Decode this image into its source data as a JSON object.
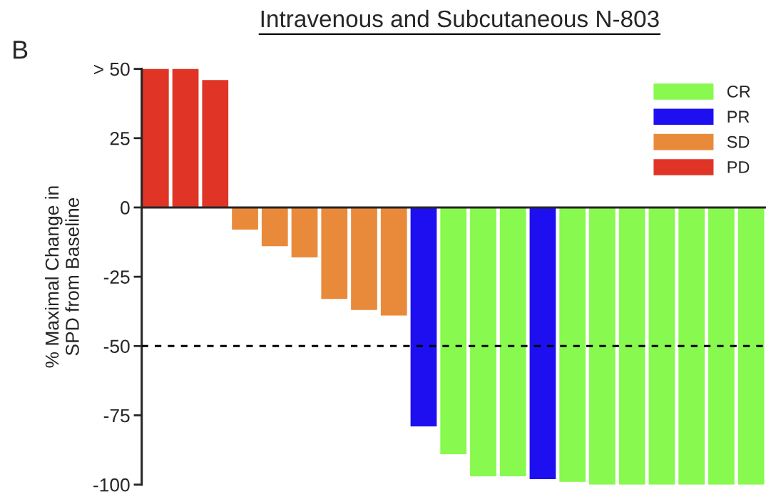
{
  "chart_data": {
    "type": "bar",
    "title": "Intravenous and Subcutaneous N-803",
    "ylabel": "% Maximal Change in\nSPD from Baseline",
    "annotations": [
      "B"
    ],
    "categories": [
      null,
      null,
      null,
      null,
      null,
      null,
      null,
      null,
      null,
      null,
      null,
      null,
      null,
      null,
      null,
      null,
      null,
      null,
      null,
      null,
      null
    ],
    "series": [
      {
        "name": "CR",
        "color": "#88f94e",
        "values": [
          null,
          null,
          null,
          null,
          null,
          null,
          null,
          null,
          null,
          null,
          -89,
          -97,
          -97,
          null,
          -99,
          -100,
          -100,
          -100,
          -100,
          -100,
          -100
        ]
      },
      {
        "name": "PR",
        "color": "#1d0ff0",
        "values": [
          null,
          null,
          null,
          null,
          null,
          null,
          null,
          null,
          null,
          -79,
          null,
          null,
          null,
          -98,
          null,
          null,
          null,
          null,
          null,
          null,
          null
        ]
      },
      {
        "name": "SD",
        "color": "#e98a3a",
        "values": [
          null,
          null,
          null,
          -8,
          -14,
          -18,
          -33,
          -37,
          -39,
          null,
          null,
          null,
          null,
          null,
          null,
          null,
          null,
          null,
          null,
          null,
          null
        ]
      },
      {
        "name": "PD",
        "color": "#e03426",
        "values": [
          50,
          50,
          46,
          null,
          null,
          null,
          null,
          null,
          null,
          null,
          null,
          null,
          null,
          null,
          null,
          null,
          null,
          null,
          null,
          null,
          null
        ]
      }
    ],
    "ylim": [
      -100,
      50
    ],
    "yticks": [
      {
        "value": 50,
        "label": "> 50"
      },
      25,
      0,
      -25,
      -50,
      -75,
      -100
    ],
    "ref_lines": [
      {
        "axis": "y",
        "value": -50,
        "color": "#000000",
        "line_style": "dashed"
      }
    ],
    "tick_labels": "y",
    "grid": false,
    "legend": "top right"
  }
}
